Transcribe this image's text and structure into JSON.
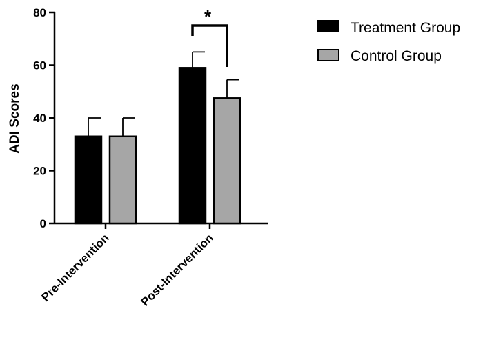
{
  "chart_data": {
    "type": "bar",
    "categories": [
      "Pre-Intervention",
      "Post-Intervention"
    ],
    "series": [
      {
        "name": "Treatment Group",
        "values": [
          33,
          59
        ],
        "errors": [
          7,
          6
        ],
        "color": "#000000"
      },
      {
        "name": "Control Group",
        "values": [
          33,
          47.5
        ],
        "errors": [
          7,
          7
        ],
        "color": "#a6a6a6"
      }
    ],
    "ylabel": "ADI Scores",
    "xlabel": "",
    "ylim": [
      0,
      80
    ],
    "yticks": [
      0,
      20,
      40,
      60,
      80
    ],
    "significance": {
      "label": "*",
      "category": "Post-Intervention"
    },
    "legend_position": "top-right",
    "grid": false
  }
}
